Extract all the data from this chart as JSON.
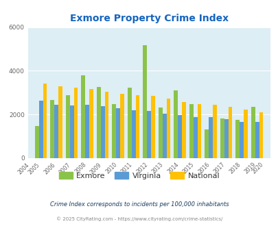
{
  "title": "Exmore Property Crime Index",
  "years": [
    2004,
    2005,
    2006,
    2007,
    2008,
    2009,
    2010,
    2011,
    2012,
    2013,
    2014,
    2015,
    2016,
    2017,
    2018,
    2019,
    2020
  ],
  "exmore": [
    null,
    1480,
    2680,
    2880,
    3780,
    3270,
    2470,
    3220,
    5170,
    2320,
    3090,
    2470,
    1310,
    1830,
    1740,
    2360,
    null
  ],
  "virginia": [
    null,
    2620,
    2430,
    2420,
    2460,
    2370,
    2290,
    2200,
    2150,
    2040,
    1970,
    1890,
    1870,
    1790,
    1660,
    1650,
    null
  ],
  "national": [
    null,
    3420,
    3300,
    3230,
    3160,
    3030,
    2950,
    2870,
    2840,
    2720,
    2580,
    2490,
    2460,
    2360,
    2240,
    2110,
    null
  ],
  "exmore_color": "#8bc34a",
  "virginia_color": "#5b9bd5",
  "national_color": "#ffc107",
  "bg_color": "#ddeef4",
  "ylim": [
    0,
    6000
  ],
  "yticks": [
    0,
    2000,
    4000,
    6000
  ],
  "tick_color": "#666666",
  "title_color": "#1565c0",
  "legend_labels": [
    "Exmore",
    "Virginia",
    "National"
  ],
  "footnote1": "Crime Index corresponds to incidents per 100,000 inhabitants",
  "footnote2": "© 2025 CityRating.com - https://www.cityrating.com/crime-statistics/",
  "footnote_color": "#1a3a5c",
  "footnote2_color": "#888888"
}
